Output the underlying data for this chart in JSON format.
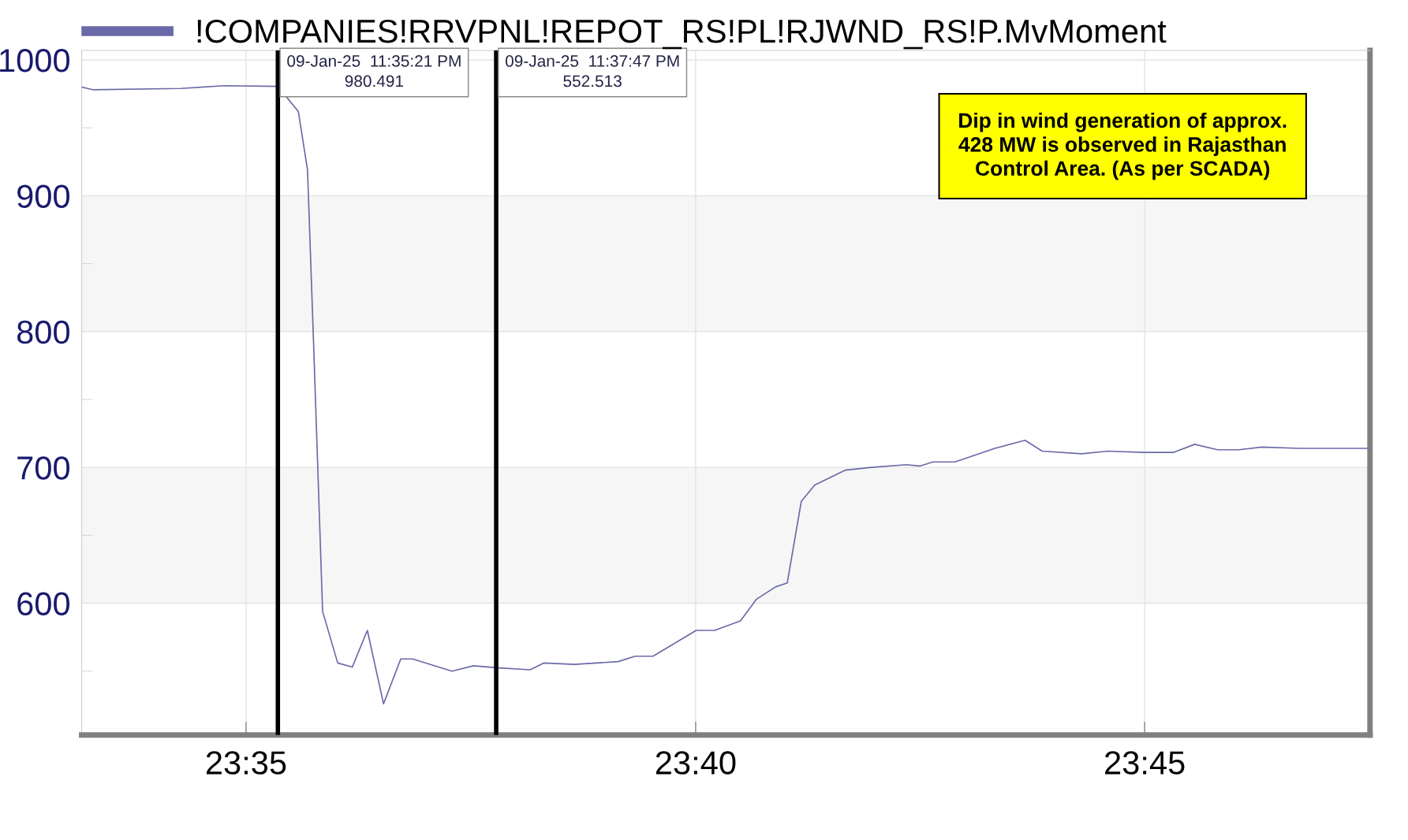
{
  "chart_data": {
    "type": "line",
    "x": [
      23.5528,
      23.555,
      23.5712,
      23.5793,
      23.5892,
      23.593,
      23.5947,
      23.5958,
      23.5975,
      23.6003,
      23.603,
      23.6058,
      23.6088,
      23.612,
      23.6142,
      23.6215,
      23.6255,
      23.6297,
      23.636,
      23.6385,
      23.6442,
      23.6523,
      23.6555,
      23.6588,
      23.6668,
      23.6702,
      23.675,
      23.678,
      23.6815,
      23.6837,
      23.6863,
      23.6888,
      23.6945,
      23.6993,
      23.7058,
      23.7083,
      23.7107,
      23.7148,
      23.7222,
      23.7278,
      23.731,
      23.7383,
      23.7432,
      23.7497,
      23.7553,
      23.7593,
      23.7635,
      23.7675,
      23.7717,
      23.7788,
      23.7918
    ],
    "series": [
      {
        "name": "!COMPANIES!RRVPNL!REPOT_RS!PL!RJWND_RS!P.MvMoment",
        "color": "#6a6aa8",
        "values": [
          980,
          978,
          979,
          981,
          980.5,
          962,
          919,
          794,
          594,
          556,
          553,
          580,
          526,
          559,
          559,
          550,
          554,
          552.5,
          551,
          556,
          555,
          557,
          561,
          561,
          580,
          580,
          587,
          603,
          612,
          615,
          675,
          687,
          698,
          700,
          702,
          701,
          704,
          704,
          714,
          720,
          712,
          710,
          712,
          711,
          711,
          717,
          713,
          713,
          715,
          714,
          714
        ]
      }
    ],
    "xlim": [
      23.5528,
      23.7918
    ],
    "xticks": [
      {
        "value": 23.5833,
        "label": "23:35"
      },
      {
        "value": 23.6667,
        "label": "23:40"
      },
      {
        "value": 23.75,
        "label": "23:45"
      }
    ],
    "ylim": [
      503,
      1007
    ],
    "yticks": [
      {
        "value": 550,
        "label": null
      },
      600,
      {
        "value": 650,
        "label": null
      },
      700,
      {
        "value": 750,
        "label": null
      },
      800,
      {
        "value": 850,
        "label": null
      },
      900,
      {
        "value": 950,
        "label": null
      },
      1000
    ],
    "bands": [
      {
        "axis": "y",
        "from": 600,
        "to": 700,
        "color": "#f6f6f6"
      },
      {
        "axis": "y",
        "from": 800,
        "to": 900,
        "color": "#f6f6f6"
      }
    ],
    "ref_lines": [
      {
        "axis": "x",
        "value": 23.5892,
        "color": "#000000"
      },
      {
        "axis": "x",
        "value": 23.6297,
        "color": "#000000"
      }
    ],
    "annotations": [
      "09-Jan-25  11:35:21 PM\n980.491",
      "09-Jan-25  11:37:47 PM\n552.513",
      "Dip in wind generation of approx. 428 MW is observed in Rajasthan Control Area. (As per SCADA)"
    ],
    "grid": true,
    "legend": "top left",
    "marker": "none",
    "line_style": "solid"
  }
}
